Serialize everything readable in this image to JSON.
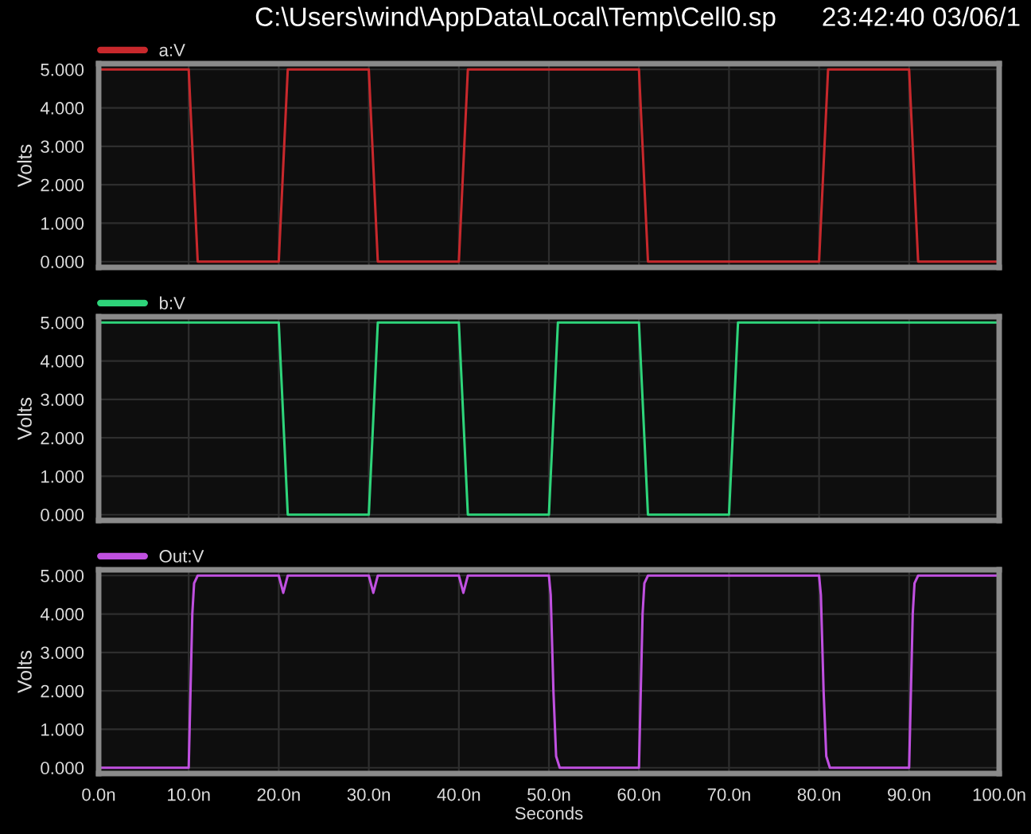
{
  "chart_data": [
    {
      "type": "line",
      "title": "C:\\Users\\wind\\AppData\\Local\\Temp\\Cell0.sp",
      "annotations": [
        "23:42:40 03/06/1"
      ],
      "ylabel": "Volts",
      "xlim": [
        0,
        100
      ],
      "ylim": [
        -0.15,
        5.15
      ],
      "xticks": [
        0,
        10,
        20,
        30,
        40,
        50,
        60,
        70,
        80,
        90,
        100
      ],
      "yticks": [
        {
          "value": 0,
          "label": "0.000"
        },
        {
          "value": 1,
          "label": "1.000"
        },
        {
          "value": 2,
          "label": "2.000"
        },
        {
          "value": 3,
          "label": "3.000"
        },
        {
          "value": 4,
          "label": "4.000"
        },
        {
          "value": 5,
          "label": "5.000"
        }
      ],
      "tick_labels": "y",
      "grid": true,
      "legend": "top left",
      "series": [
        {
          "name": "a:V",
          "color": "#c8282c",
          "x": [
            0,
            10,
            11,
            20,
            21,
            30,
            31,
            40,
            41,
            60,
            61,
            80,
            81,
            90,
            91,
            100
          ],
          "values": [
            5,
            5,
            0,
            0,
            5,
            5,
            0,
            0,
            5,
            5,
            0,
            0,
            5,
            5,
            0,
            0
          ]
        }
      ]
    },
    {
      "type": "line",
      "ylabel": "Volts",
      "xlim": [
        0,
        100
      ],
      "ylim": [
        -0.15,
        5.15
      ],
      "xticks": [
        0,
        10,
        20,
        30,
        40,
        50,
        60,
        70,
        80,
        90,
        100
      ],
      "yticks": [
        {
          "value": 0,
          "label": "0.000"
        },
        {
          "value": 1,
          "label": "1.000"
        },
        {
          "value": 2,
          "label": "2.000"
        },
        {
          "value": 3,
          "label": "3.000"
        },
        {
          "value": 4,
          "label": "4.000"
        },
        {
          "value": 5,
          "label": "5.000"
        }
      ],
      "tick_labels": "y",
      "grid": true,
      "legend": "top left",
      "series": [
        {
          "name": "b:V",
          "color": "#2ed47a",
          "x": [
            0,
            20,
            21,
            30,
            31,
            40,
            41,
            50,
            51,
            60,
            61,
            70,
            71,
            100
          ],
          "values": [
            5,
            5,
            0,
            0,
            5,
            5,
            0,
            0,
            5,
            5,
            0,
            0,
            5,
            5
          ]
        }
      ]
    },
    {
      "type": "line",
      "ylabel": "Volts",
      "xlabel": "Seconds",
      "xlim": [
        0,
        100
      ],
      "ylim": [
        -0.15,
        5.15
      ],
      "xticks": [
        {
          "value": 0,
          "label": "0.0n"
        },
        {
          "value": 10,
          "label": "10.0n"
        },
        {
          "value": 20,
          "label": "20.0n"
        },
        {
          "value": 30,
          "label": "30.0n"
        },
        {
          "value": 40,
          "label": "40.0n"
        },
        {
          "value": 50,
          "label": "50.0n"
        },
        {
          "value": 60,
          "label": "60.0n"
        },
        {
          "value": 70,
          "label": "70.0n"
        },
        {
          "value": 80,
          "label": "80.0n"
        },
        {
          "value": 90,
          "label": "90.0n"
        },
        {
          "value": 100,
          "label": "100.0n"
        }
      ],
      "yticks": [
        {
          "value": 0,
          "label": "0.000"
        },
        {
          "value": 1,
          "label": "1.000"
        },
        {
          "value": 2,
          "label": "2.000"
        },
        {
          "value": 3,
          "label": "3.000"
        },
        {
          "value": 4,
          "label": "4.000"
        },
        {
          "value": 5,
          "label": "5.000"
        }
      ],
      "grid": true,
      "legend": "top left",
      "series": [
        {
          "name": "Out:V",
          "color": "#c050e0",
          "x": [
            0,
            10,
            10.2,
            10.4,
            10.6,
            11,
            20,
            20.5,
            21,
            30,
            30.5,
            31,
            40,
            40.5,
            41,
            50,
            50.2,
            50.5,
            50.8,
            51.2,
            60,
            60.2,
            60.4,
            60.6,
            61,
            80,
            80.2,
            80.5,
            80.8,
            81.2,
            90,
            90.2,
            90.4,
            90.6,
            91,
            100
          ],
          "values": [
            0,
            0,
            2,
            4,
            4.8,
            5,
            5,
            4.55,
            5,
            5,
            4.55,
            5,
            5,
            4.55,
            5,
            5,
            4.5,
            2,
            0.3,
            0,
            0,
            2,
            4,
            4.8,
            5,
            5,
            4.5,
            2,
            0.3,
            0,
            0,
            2,
            4,
            4.8,
            5,
            5
          ]
        }
      ]
    }
  ]
}
